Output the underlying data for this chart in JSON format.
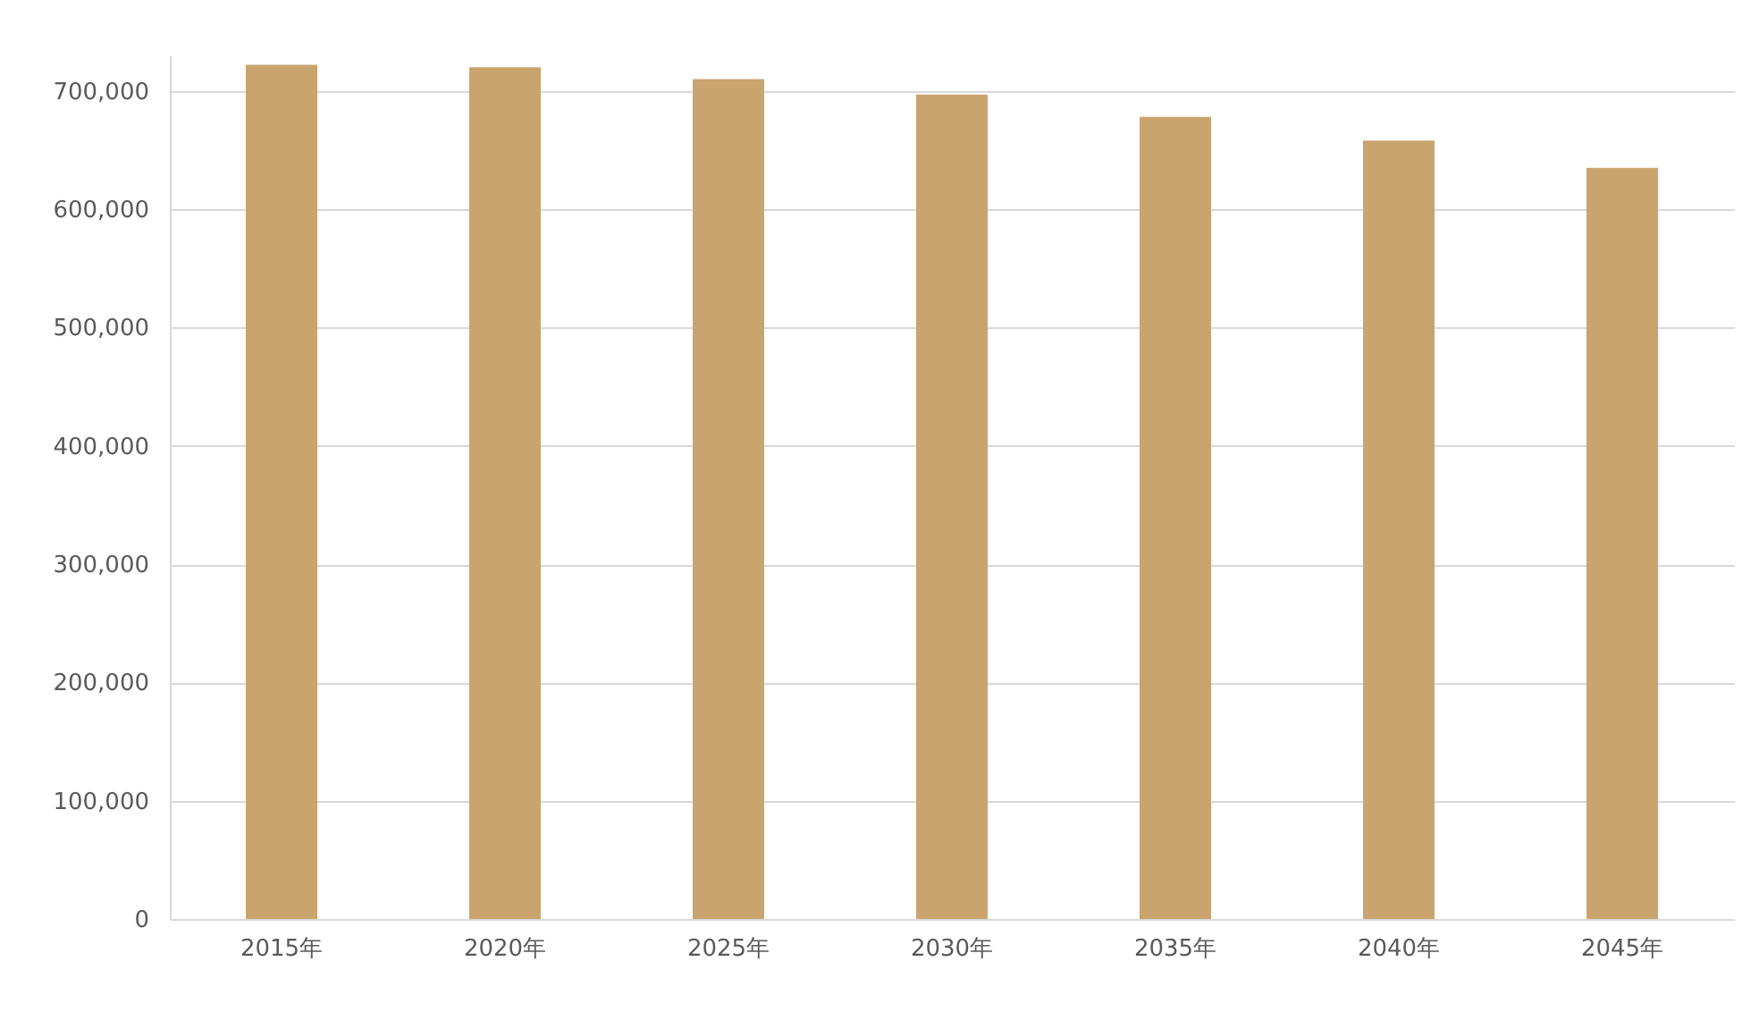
{
  "chart_data": {
    "type": "bar",
    "categories": [
      "2015年",
      "2020年",
      "2025年",
      "2030年",
      "2035年",
      "2040年",
      "2045年"
    ],
    "values": [
      722000,
      720000,
      710000,
      697000,
      678000,
      658000,
      635000
    ],
    "color": "#c9a46e",
    "ylim": [
      0,
      730000
    ],
    "yticks": [
      {
        "value": 0,
        "label": "0"
      },
      {
        "value": 100000,
        "label": "100,000"
      },
      {
        "value": 200000,
        "label": "200,000"
      },
      {
        "value": 300000,
        "label": "300,000"
      },
      {
        "value": 400000,
        "label": "400,000"
      },
      {
        "value": 500000,
        "label": "500,000"
      },
      {
        "value": 600000,
        "label": "600,000"
      },
      {
        "value": 700000,
        "label": "700,000"
      }
    ],
    "grid": "y"
  }
}
